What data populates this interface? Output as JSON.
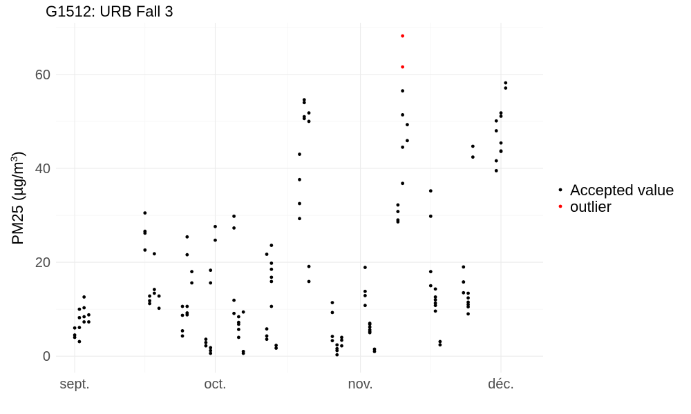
{
  "chart_data": {
    "type": "scatter",
    "title": "G1512: URB Fall 3",
    "xlabel": "",
    "ylabel": "PM25 (µg/m³)",
    "ylabel_parts": {
      "main": "PM25 (",
      "unit": "µg/m",
      "sup": "3",
      "close": ")"
    },
    "x_type": "date",
    "xlim": [
      "2020-08-28",
      "2020-12-10"
    ],
    "ylim": [
      -3.5,
      71
    ],
    "x_ticks": [
      {
        "date": "2020-09-01",
        "label": "sept."
      },
      {
        "date": "2020-10-01",
        "label": "oct."
      },
      {
        "date": "2020-11-01",
        "label": "nov."
      },
      {
        "date": "2020-12-01",
        "label": "déc."
      }
    ],
    "y_ticks": [
      0,
      20,
      40,
      60
    ],
    "grid": true,
    "legend": {
      "position": "right",
      "entries": [
        "Accepted value",
        "outlier"
      ]
    },
    "colors": {
      "Accepted value": "#000000",
      "outlier": "#ff0000"
    },
    "series": [
      {
        "name": "Accepted value",
        "points": [
          [
            "2020-09-01",
            6.0
          ],
          [
            "2020-09-01",
            4.5
          ],
          [
            "2020-09-01",
            4.0
          ],
          [
            "2020-09-02",
            3.1
          ],
          [
            "2020-09-02",
            6.1
          ],
          [
            "2020-09-02",
            8.2
          ],
          [
            "2020-09-02",
            10.0
          ],
          [
            "2020-09-03",
            10.3
          ],
          [
            "2020-09-03",
            12.6
          ],
          [
            "2020-09-03",
            7.3
          ],
          [
            "2020-09-03",
            8.4
          ],
          [
            "2020-09-04",
            8.8
          ],
          [
            "2020-09-04",
            7.3
          ],
          [
            "2020-09-16",
            30.5
          ],
          [
            "2020-09-16",
            26.6
          ],
          [
            "2020-09-16",
            26.2
          ],
          [
            "2020-09-16",
            22.6
          ],
          [
            "2020-09-17",
            11.8
          ],
          [
            "2020-09-17",
            12.8
          ],
          [
            "2020-09-17",
            11.2
          ],
          [
            "2020-09-18",
            14.2
          ],
          [
            "2020-09-18",
            21.8
          ],
          [
            "2020-09-18",
            13.4
          ],
          [
            "2020-09-19",
            12.8
          ],
          [
            "2020-09-19",
            10.2
          ],
          [
            "2020-09-24",
            5.4
          ],
          [
            "2020-09-24",
            4.3
          ],
          [
            "2020-09-24",
            8.7
          ],
          [
            "2020-09-24",
            10.6
          ],
          [
            "2020-09-25",
            10.6
          ],
          [
            "2020-09-25",
            9.2
          ],
          [
            "2020-09-25",
            8.8
          ],
          [
            "2020-09-25",
            25.4
          ],
          [
            "2020-09-25",
            21.6
          ],
          [
            "2020-09-26",
            18.0
          ],
          [
            "2020-09-26",
            15.6
          ],
          [
            "2020-09-29",
            3.6
          ],
          [
            "2020-09-29",
            2.2
          ],
          [
            "2020-09-29",
            2.9
          ],
          [
            "2020-09-30",
            1.8
          ],
          [
            "2020-09-30",
            1.2
          ],
          [
            "2020-09-30",
            0.6
          ],
          [
            "2020-09-30",
            18.3
          ],
          [
            "2020-09-30",
            15.6
          ],
          [
            "2020-10-01",
            27.6
          ],
          [
            "2020-10-01",
            24.7
          ],
          [
            "2020-10-05",
            29.8
          ],
          [
            "2020-10-05",
            27.3
          ],
          [
            "2020-10-05",
            11.9
          ],
          [
            "2020-10-05",
            9.1
          ],
          [
            "2020-10-06",
            8.4
          ],
          [
            "2020-10-06",
            7.2
          ],
          [
            "2020-10-06",
            6.8
          ],
          [
            "2020-10-06",
            5.7
          ],
          [
            "2020-10-06",
            4.0
          ],
          [
            "2020-10-07",
            9.4
          ],
          [
            "2020-10-07",
            1.0
          ],
          [
            "2020-10-07",
            0.6
          ],
          [
            "2020-10-12",
            21.7
          ],
          [
            "2020-10-12",
            5.8
          ],
          [
            "2020-10-12",
            4.3
          ],
          [
            "2020-10-12",
            3.6
          ],
          [
            "2020-10-13",
            23.6
          ],
          [
            "2020-10-13",
            19.8
          ],
          [
            "2020-10-13",
            18.5
          ],
          [
            "2020-10-13",
            16.8
          ],
          [
            "2020-10-13",
            15.9
          ],
          [
            "2020-10-13",
            10.6
          ],
          [
            "2020-10-14",
            2.3
          ],
          [
            "2020-10-14",
            1.7
          ],
          [
            "2020-10-19",
            43.0
          ],
          [
            "2020-10-19",
            37.6
          ],
          [
            "2020-10-19",
            32.5
          ],
          [
            "2020-10-19",
            29.3
          ],
          [
            "2020-10-20",
            54.6
          ],
          [
            "2020-10-20",
            54.0
          ],
          [
            "2020-10-20",
            51.0
          ],
          [
            "2020-10-20",
            50.6
          ],
          [
            "2020-10-21",
            51.8
          ],
          [
            "2020-10-21",
            50.0
          ],
          [
            "2020-10-21",
            19.1
          ],
          [
            "2020-10-21",
            15.9
          ],
          [
            "2020-10-26",
            11.4
          ],
          [
            "2020-10-26",
            9.3
          ],
          [
            "2020-10-26",
            4.2
          ],
          [
            "2020-10-26",
            3.3
          ],
          [
            "2020-10-27",
            2.4
          ],
          [
            "2020-10-27",
            1.6
          ],
          [
            "2020-10-27",
            1.2
          ],
          [
            "2020-10-27",
            0.3
          ],
          [
            "2020-10-28",
            4.0
          ],
          [
            "2020-10-28",
            3.4
          ],
          [
            "2020-10-28",
            2.2
          ],
          [
            "2020-11-02",
            18.9
          ],
          [
            "2020-11-02",
            13.8
          ],
          [
            "2020-11-02",
            12.9
          ],
          [
            "2020-11-02",
            10.8
          ],
          [
            "2020-11-03",
            7.0
          ],
          [
            "2020-11-03",
            6.8
          ],
          [
            "2020-11-03",
            6.2
          ],
          [
            "2020-11-03",
            5.6
          ],
          [
            "2020-11-03",
            5.2
          ],
          [
            "2020-11-03",
            5.0
          ],
          [
            "2020-11-04",
            1.5
          ],
          [
            "2020-11-04",
            1.0
          ],
          [
            "2020-11-09",
            32.2
          ],
          [
            "2020-11-09",
            30.8
          ],
          [
            "2020-11-09",
            29.0
          ],
          [
            "2020-11-09",
            28.6
          ],
          [
            "2020-11-10",
            56.5
          ],
          [
            "2020-11-10",
            51.4
          ],
          [
            "2020-11-10",
            44.5
          ],
          [
            "2020-11-10",
            36.8
          ],
          [
            "2020-11-11",
            49.3
          ],
          [
            "2020-11-11",
            45.9
          ],
          [
            "2020-11-16",
            35.2
          ],
          [
            "2020-11-16",
            29.8
          ],
          [
            "2020-11-16",
            18.0
          ],
          [
            "2020-11-16",
            15.0
          ],
          [
            "2020-11-17",
            14.3
          ],
          [
            "2020-11-17",
            12.6
          ],
          [
            "2020-11-17",
            12.0
          ],
          [
            "2020-11-17",
            11.3
          ],
          [
            "2020-11-17",
            10.8
          ],
          [
            "2020-11-17",
            9.6
          ],
          [
            "2020-11-18",
            3.1
          ],
          [
            "2020-11-18",
            2.4
          ],
          [
            "2020-11-23",
            19.0
          ],
          [
            "2020-11-23",
            15.8
          ],
          [
            "2020-11-23",
            15.8
          ],
          [
            "2020-11-23",
            13.5
          ],
          [
            "2020-11-24",
            13.4
          ],
          [
            "2020-11-24",
            12.4
          ],
          [
            "2020-11-24",
            11.5
          ],
          [
            "2020-11-24",
            11.0
          ],
          [
            "2020-11-24",
            10.5
          ],
          [
            "2020-11-24",
            9.0
          ],
          [
            "2020-11-25",
            44.7
          ],
          [
            "2020-11-25",
            42.4
          ],
          [
            "2020-11-30",
            50.1
          ],
          [
            "2020-11-30",
            48.0
          ],
          [
            "2020-11-30",
            41.6
          ],
          [
            "2020-11-30",
            39.5
          ],
          [
            "2020-12-01",
            51.1
          ],
          [
            "2020-12-01",
            45.4
          ],
          [
            "2020-12-01",
            43.7
          ],
          [
            "2020-12-01",
            43.6
          ],
          [
            "2020-12-01",
            51.8
          ],
          [
            "2020-12-02",
            58.2
          ],
          [
            "2020-12-02",
            57.1
          ]
        ]
      },
      {
        "name": "outlier",
        "points": [
          [
            "2020-11-10",
            68.2
          ],
          [
            "2020-11-10",
            61.6
          ]
        ]
      }
    ]
  }
}
